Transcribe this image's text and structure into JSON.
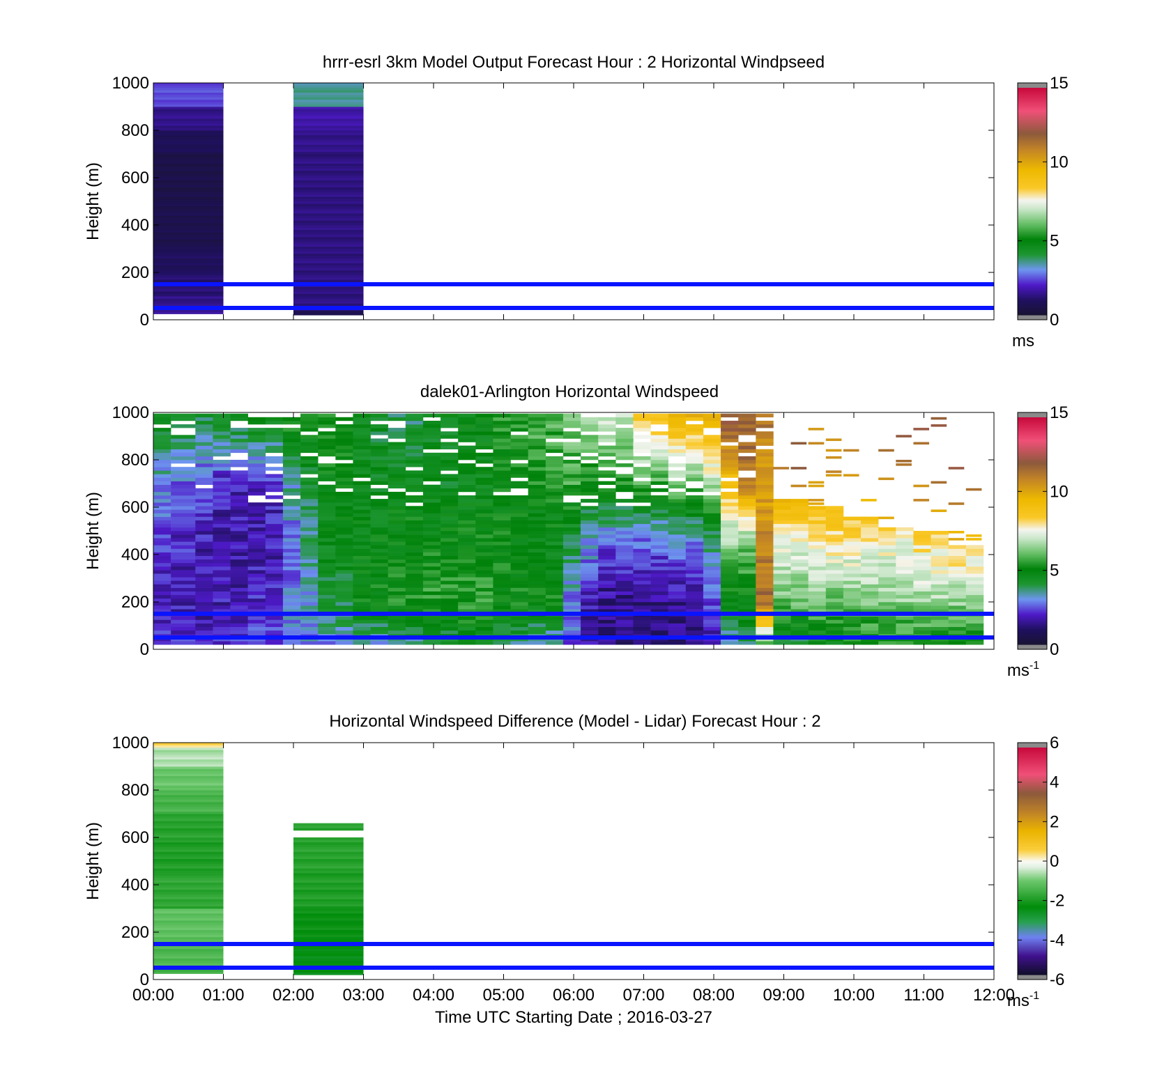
{
  "figure": {
    "xlabel": "Time UTC  Starting Date ; 2016-03-27",
    "xticks": [
      "00:00",
      "01:00",
      "02:00",
      "03:00",
      "04:00",
      "05:00",
      "06:00",
      "07:00",
      "08:00",
      "09:00",
      "10:00",
      "11:00",
      "12:00"
    ],
    "reference_lines_m": [
      50,
      150
    ],
    "reference_line_color": "#0a14ff"
  },
  "chart_data": [
    {
      "type": "heatmap",
      "title": "hrrr-esrl 3km Model Output   Forecast Hour : 2 Horizontal Windpseed",
      "ylabel": "Height (m)",
      "xlim_hours": [
        0,
        12
      ],
      "ylim": [
        0,
        1000
      ],
      "yticks": [
        "0",
        "200",
        "400",
        "600",
        "800",
        "1000"
      ],
      "colorbar": {
        "ticks": [
          "0",
          "5",
          "10",
          "15"
        ],
        "range": [
          0,
          15
        ],
        "unit": "ms",
        "unit_sup": ""
      },
      "columns": [
        {
          "t0": 0,
          "t1": 1,
          "cells": [
            [
              25,
              60,
              1.6
            ],
            [
              60,
              100,
              1.4
            ],
            [
              100,
              150,
              1.2
            ],
            [
              150,
              200,
              1.1
            ],
            [
              200,
              300,
              0.9
            ],
            [
              300,
              500,
              0.6
            ],
            [
              500,
              700,
              0.5
            ],
            [
              700,
              800,
              0.8
            ],
            [
              800,
              900,
              1.4
            ],
            [
              900,
              1000,
              2.4
            ]
          ]
        },
        {
          "t0": 2,
          "t1": 3,
          "cells": [
            [
              20,
              40,
              0.5
            ],
            [
              40,
              150,
              1.3
            ],
            [
              150,
              500,
              1.3
            ],
            [
              500,
              700,
              1.3
            ],
            [
              700,
              800,
              1.4
            ],
            [
              800,
              900,
              1.7
            ],
            [
              900,
              1000,
              3.5
            ]
          ]
        }
      ]
    },
    {
      "type": "heatmap",
      "title": "dalek01-Arlington  Horizontal Windspeed",
      "ylabel": "Height (m)",
      "xlim_hours": [
        0,
        12
      ],
      "ylim": [
        0,
        1000
      ],
      "yticks": [
        "0",
        "200",
        "400",
        "600",
        "800",
        "1000"
      ],
      "colorbar": {
        "ticks": [
          "0",
          "5",
          "10",
          "15"
        ],
        "range": [
          0,
          15
        ],
        "unit": "ms",
        "unit_sup": "-1"
      },
      "profiles": [
        {
          "t0": 0.0,
          "t1": 0.25,
          "top": 1000,
          "speeds": [
            2.0,
            1.8,
            2.2,
            3.0,
            4.5
          ]
        },
        {
          "t0": 0.25,
          "t1": 0.6,
          "top": 1000,
          "speeds": [
            2.0,
            1.8,
            2.0,
            2.6,
            4.5
          ]
        },
        {
          "t0": 0.6,
          "t1": 0.85,
          "top": 1000,
          "speeds": [
            2.0,
            1.7,
            1.8,
            2.3,
            4.2
          ]
        },
        {
          "t0": 0.85,
          "t1": 1.35,
          "top": 1000,
          "speeds": [
            2.2,
            1.8,
            1.7,
            1.9,
            4.8
          ]
        },
        {
          "t0": 1.35,
          "t1": 1.85,
          "top": 1000,
          "speeds": [
            2.4,
            2.0,
            1.8,
            2.0,
            5.0
          ]
        },
        {
          "t0": 1.85,
          "t1": 2.1,
          "top": 1000,
          "speeds": [
            3.0,
            2.8,
            2.6,
            3.5,
            5.6
          ]
        },
        {
          "t0": 2.1,
          "t1": 2.35,
          "top": 1000,
          "speeds": [
            3.0,
            3.2,
            3.6,
            4.2,
            5.2
          ]
        },
        {
          "t0": 2.35,
          "t1": 2.85,
          "top": 1000,
          "speeds": [
            3.0,
            4.0,
            4.6,
            4.9,
            5.0
          ]
        },
        {
          "t0": 2.85,
          "t1": 3.35,
          "top": 1000,
          "speeds": [
            3.2,
            5.0,
            4.8,
            4.5,
            4.2
          ]
        },
        {
          "t0": 3.35,
          "t1": 3.85,
          "top": 1000,
          "speeds": [
            3.5,
            5.2,
            5.0,
            4.7,
            3.8
          ]
        },
        {
          "t0": 3.85,
          "t1": 4.35,
          "top": 1000,
          "speeds": [
            4.0,
            5.4,
            5.0,
            4.4,
            4.6
          ]
        },
        {
          "t0": 4.35,
          "t1": 4.85,
          "top": 1000,
          "speeds": [
            4.4,
            5.4,
            5.0,
            4.6,
            4.8
          ]
        },
        {
          "t0": 4.85,
          "t1": 5.35,
          "top": 1000,
          "speeds": [
            3.8,
            5.2,
            4.9,
            5.0,
            5.4
          ]
        },
        {
          "t0": 5.35,
          "t1": 5.85,
          "top": 1000,
          "speeds": [
            3.2,
            5.0,
            4.6,
            5.2,
            5.8
          ]
        },
        {
          "t0": 5.85,
          "t1": 6.1,
          "top": 1000,
          "speeds": [
            2.6,
            2.8,
            4.0,
            5.6,
            6.2
          ]
        },
        {
          "t0": 6.1,
          "t1": 6.35,
          "top": 1000,
          "speeds": [
            1.6,
            1.8,
            3.2,
            5.0,
            6.6
          ]
        },
        {
          "t0": 6.35,
          "t1": 6.85,
          "top": 1000,
          "speeds": [
            1.2,
            1.4,
            2.4,
            5.4,
            7.2
          ]
        },
        {
          "t0": 6.85,
          "t1": 7.35,
          "top": 1000,
          "speeds": [
            1.0,
            1.4,
            2.6,
            5.6,
            9.0
          ]
        },
        {
          "t0": 7.35,
          "t1": 7.85,
          "top": 1000,
          "speeds": [
            1.2,
            1.5,
            2.8,
            6.2,
            9.6
          ]
        },
        {
          "t0": 7.85,
          "t1": 8.1,
          "top": 1000,
          "speeds": [
            1.8,
            2.2,
            3.5,
            6.8,
            10.0
          ]
        },
        {
          "t0": 8.1,
          "t1": 8.35,
          "top": 1000,
          "speeds": [
            3.0,
            4.5,
            6.5,
            9.0,
            12.5
          ]
        },
        {
          "t0": 8.35,
          "t1": 8.6,
          "top": 1000,
          "speeds": [
            4.0,
            4.8,
            6.0,
            11.0,
            12.0
          ]
        },
        {
          "t0": 8.6,
          "t1": 8.85,
          "top": 1000,
          "speeds": [
            6.0,
            11.5,
            11.0,
            10.0,
            11.5
          ]
        },
        {
          "t0": 8.85,
          "t1": 9.35,
          "top": 640,
          "speeds": [
            4.0,
            6.0,
            7.5,
            10.0,
            12.0
          ]
        },
        {
          "t0": 9.35,
          "t1": 9.85,
          "top": 600,
          "speeds": [
            4.5,
            6.0,
            8.0,
            9.5,
            10.0
          ]
        },
        {
          "t0": 9.85,
          "t1": 10.35,
          "top": 560,
          "speeds": [
            5.0,
            6.2,
            7.8,
            9.6,
            10.5
          ]
        },
        {
          "t0": 10.35,
          "t1": 10.85,
          "top": 520,
          "speeds": [
            5.2,
            6.4,
            7.6,
            9.8,
            11.0
          ]
        },
        {
          "t0": 10.85,
          "t1": 11.35,
          "top": 500,
          "speeds": [
            5.0,
            6.6,
            8.0,
            10.0,
            11.5
          ]
        },
        {
          "t0": 11.35,
          "t1": 11.85,
          "top": 440,
          "speeds": [
            5.0,
            6.4,
            8.5,
            10.5,
            13.0
          ]
        }
      ],
      "profile_heights_m": [
        30,
        200,
        450,
        700,
        1000
      ]
    },
    {
      "type": "heatmap",
      "title": "Horizontal Windspeed Difference (Model - Lidar) Forecast Hour : 2",
      "ylabel": "Height (m)",
      "xlim_hours": [
        0,
        12
      ],
      "ylim": [
        0,
        1000
      ],
      "yticks": [
        "0",
        "200",
        "400",
        "600",
        "800",
        "1000"
      ],
      "colorbar": {
        "ticks": [
          "-6",
          "-4",
          "-2",
          "0",
          "2",
          "4",
          "6"
        ],
        "range": [
          -6,
          6
        ],
        "unit": "ms",
        "unit_sup": "-1"
      },
      "columns": [
        {
          "t0": 0,
          "t1": 1,
          "cells": [
            [
              25,
              60,
              -1.6
            ],
            [
              60,
              150,
              -1.4
            ],
            [
              150,
              300,
              -1.2
            ],
            [
              300,
              450,
              -1.8
            ],
            [
              450,
              600,
              -2.0
            ],
            [
              600,
              700,
              -1.9
            ],
            [
              700,
              800,
              -1.5
            ],
            [
              800,
              900,
              -1.1
            ],
            [
              900,
              980,
              -0.6
            ],
            [
              980,
              1000,
              0.4
            ]
          ]
        },
        {
          "t0": 2,
          "t1": 3,
          "cells": [
            [
              20,
              150,
              -2.5
            ],
            [
              150,
              300,
              -2.3
            ],
            [
              300,
              450,
              -2.0
            ],
            [
              450,
              600,
              -1.9
            ],
            [
              630,
              660,
              -1.9
            ]
          ]
        }
      ]
    }
  ]
}
